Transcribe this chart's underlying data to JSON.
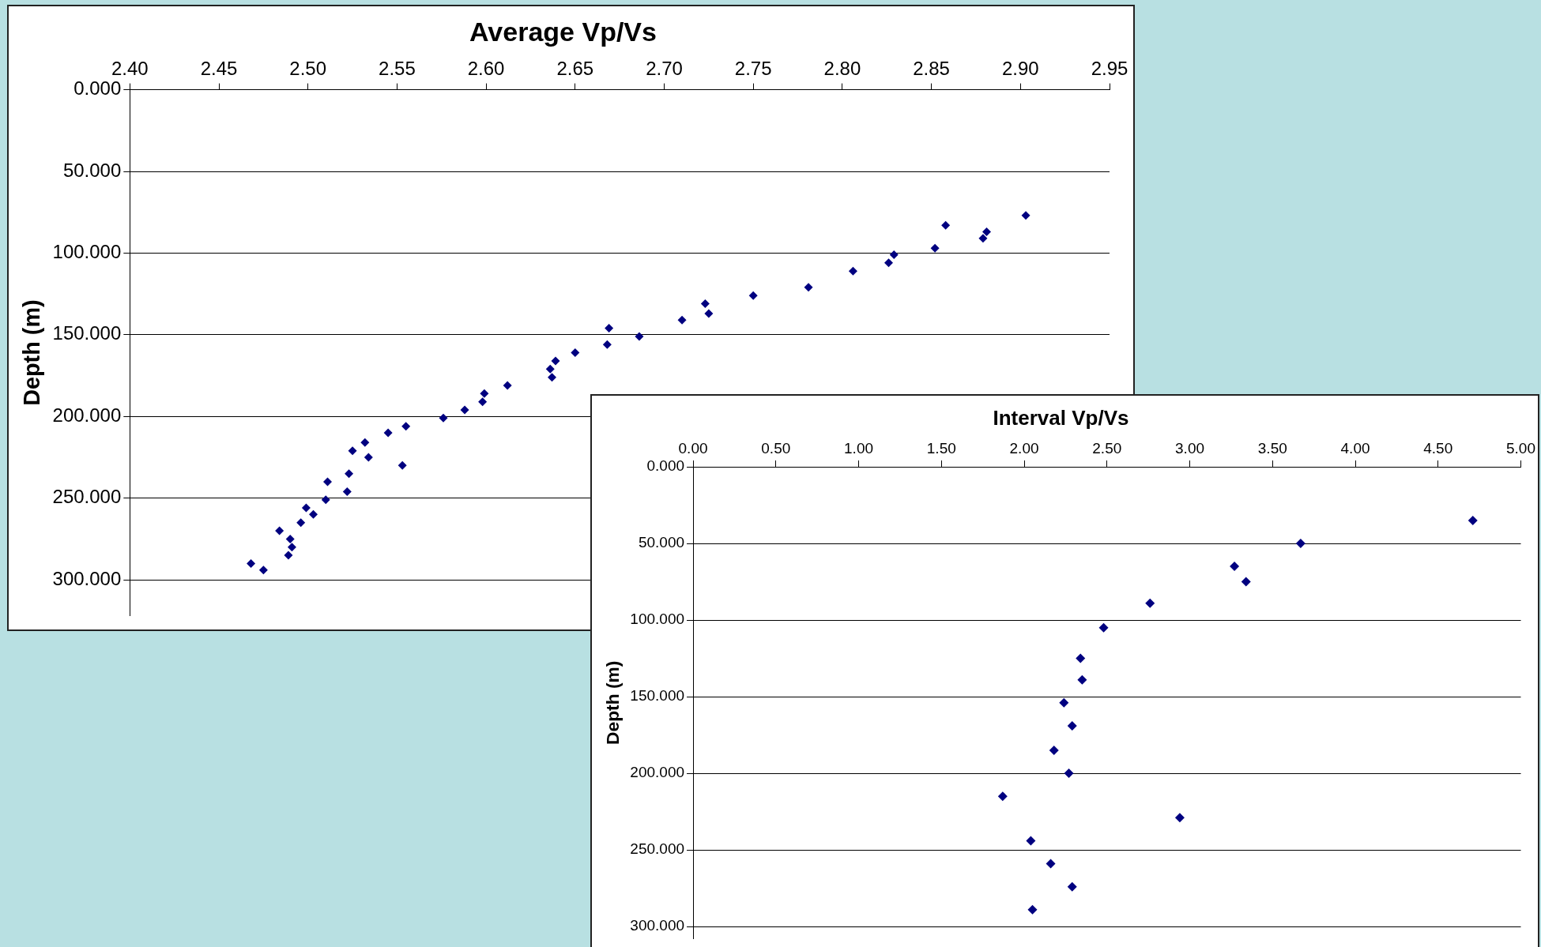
{
  "chart_data": [
    {
      "type": "scatter",
      "title": "Average Vp/Vs",
      "ylabel": "Depth (m)",
      "color": "#000080",
      "marker": "diamond",
      "grid": "y",
      "legend": false,
      "x": [
        2.903,
        2.858,
        2.881,
        2.879,
        2.852,
        2.829,
        2.826,
        2.806,
        2.781,
        2.75,
        2.723,
        2.725,
        2.71,
        2.669,
        2.686,
        2.668,
        2.65,
        2.639,
        2.636,
        2.637,
        2.612,
        2.599,
        2.598,
        2.588,
        2.576,
        2.555,
        2.545,
        2.532,
        2.525,
        2.534,
        2.553,
        2.523,
        2.511,
        2.522,
        2.51,
        2.499,
        2.503,
        2.496,
        2.484,
        2.49,
        2.491,
        2.489,
        2.468,
        2.475
      ],
      "values": [
        77,
        83,
        87,
        91,
        97,
        101,
        106,
        111,
        121,
        126,
        131,
        137,
        141,
        146,
        151,
        156,
        161,
        166,
        171,
        176,
        181,
        186,
        191,
        196,
        201,
        206,
        210,
        216,
        221,
        225,
        230,
        235,
        240,
        246,
        251,
        256,
        260,
        265,
        270,
        275,
        280,
        285,
        290,
        294
      ],
      "xlim": [
        2.4,
        2.95
      ],
      "xticks": [
        {
          "value": 2.4,
          "label": "2.40"
        },
        {
          "value": 2.45,
          "label": "2.45"
        },
        {
          "value": 2.5,
          "label": "2.50"
        },
        {
          "value": 2.55,
          "label": "2.55"
        },
        {
          "value": 2.6,
          "label": "2.60"
        },
        {
          "value": 2.65,
          "label": "2.65"
        },
        {
          "value": 2.7,
          "label": "2.70"
        },
        {
          "value": 2.75,
          "label": "2.75"
        },
        {
          "value": 2.8,
          "label": "2.80"
        },
        {
          "value": 2.85,
          "label": "2.85"
        },
        {
          "value": 2.9,
          "label": "2.90"
        },
        {
          "value": 2.95,
          "label": "2.95"
        }
      ],
      "ylim": [
        322,
        0
      ],
      "yticks": [
        {
          "value": 0,
          "label": "0.000"
        },
        {
          "value": 50,
          "label": "50.000"
        },
        {
          "value": 100,
          "label": "100.000"
        },
        {
          "value": 150,
          "label": "150.000"
        },
        {
          "value": 200,
          "label": "200.000"
        },
        {
          "value": 250,
          "label": "250.000"
        },
        {
          "value": 300,
          "label": "300.000"
        }
      ]
    },
    {
      "type": "scatter",
      "title": "Interval Vp/Vs",
      "ylabel": "Depth (m)",
      "color": "#000080",
      "marker": "diamond",
      "grid": "y",
      "legend": false,
      "x": [
        4.71,
        3.67,
        3.27,
        3.34,
        2.76,
        2.48,
        2.34,
        2.35,
        2.24,
        2.29,
        2.18,
        2.27,
        1.87,
        2.94,
        2.04,
        2.16,
        2.29,
        2.05
      ],
      "values": [
        35,
        50,
        65,
        75,
        89,
        105,
        125,
        139,
        154,
        169,
        185,
        200,
        215,
        229,
        244,
        259,
        274,
        289
      ],
      "xlim": [
        0,
        5
      ],
      "xticks": [
        {
          "value": 0,
          "label": "0.00"
        },
        {
          "value": 0.5,
          "label": "0.50"
        },
        {
          "value": 1,
          "label": "1.00"
        },
        {
          "value": 1.5,
          "label": "1.50"
        },
        {
          "value": 2,
          "label": "2.00"
        },
        {
          "value": 2.5,
          "label": "2.50"
        },
        {
          "value": 3,
          "label": "3.00"
        },
        {
          "value": 3.5,
          "label": "3.50"
        },
        {
          "value": 4,
          "label": "4.00"
        },
        {
          "value": 4.5,
          "label": "4.50"
        },
        {
          "value": 5,
          "label": "5.00"
        }
      ],
      "ylim": [
        308,
        0
      ],
      "yticks": [
        {
          "value": 0,
          "label": "0.000"
        },
        {
          "value": 50,
          "label": "50.000"
        },
        {
          "value": 100,
          "label": "100.000"
        },
        {
          "value": 150,
          "label": "150.000"
        },
        {
          "value": 200,
          "label": "200.000"
        },
        {
          "value": 250,
          "label": "250.000"
        },
        {
          "value": 300,
          "label": "300.000"
        }
      ]
    }
  ]
}
